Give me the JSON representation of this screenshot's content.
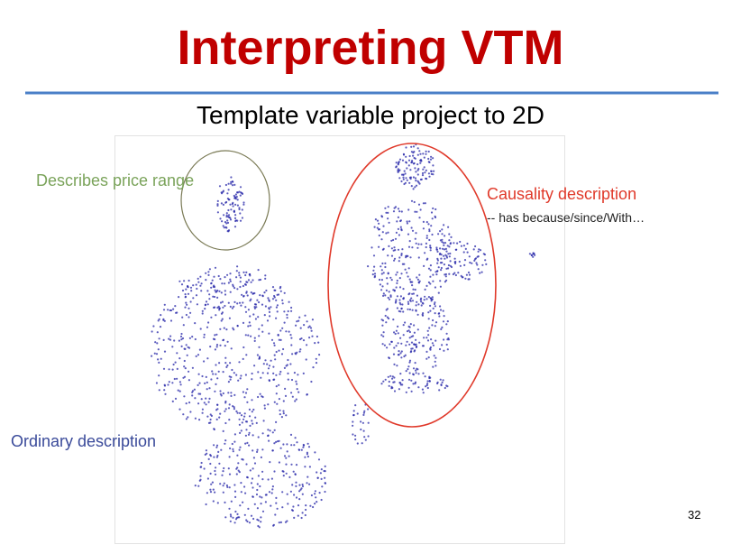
{
  "header": {
    "title": "Interpreting VTM"
  },
  "subtitle": "Template variable project to 2D",
  "annotations": {
    "price": "Describes price range",
    "causality": "Causality description",
    "causality_note": "-- has because/since/With…",
    "ordinary": "Ordinary description"
  },
  "page_number": "32"
}
